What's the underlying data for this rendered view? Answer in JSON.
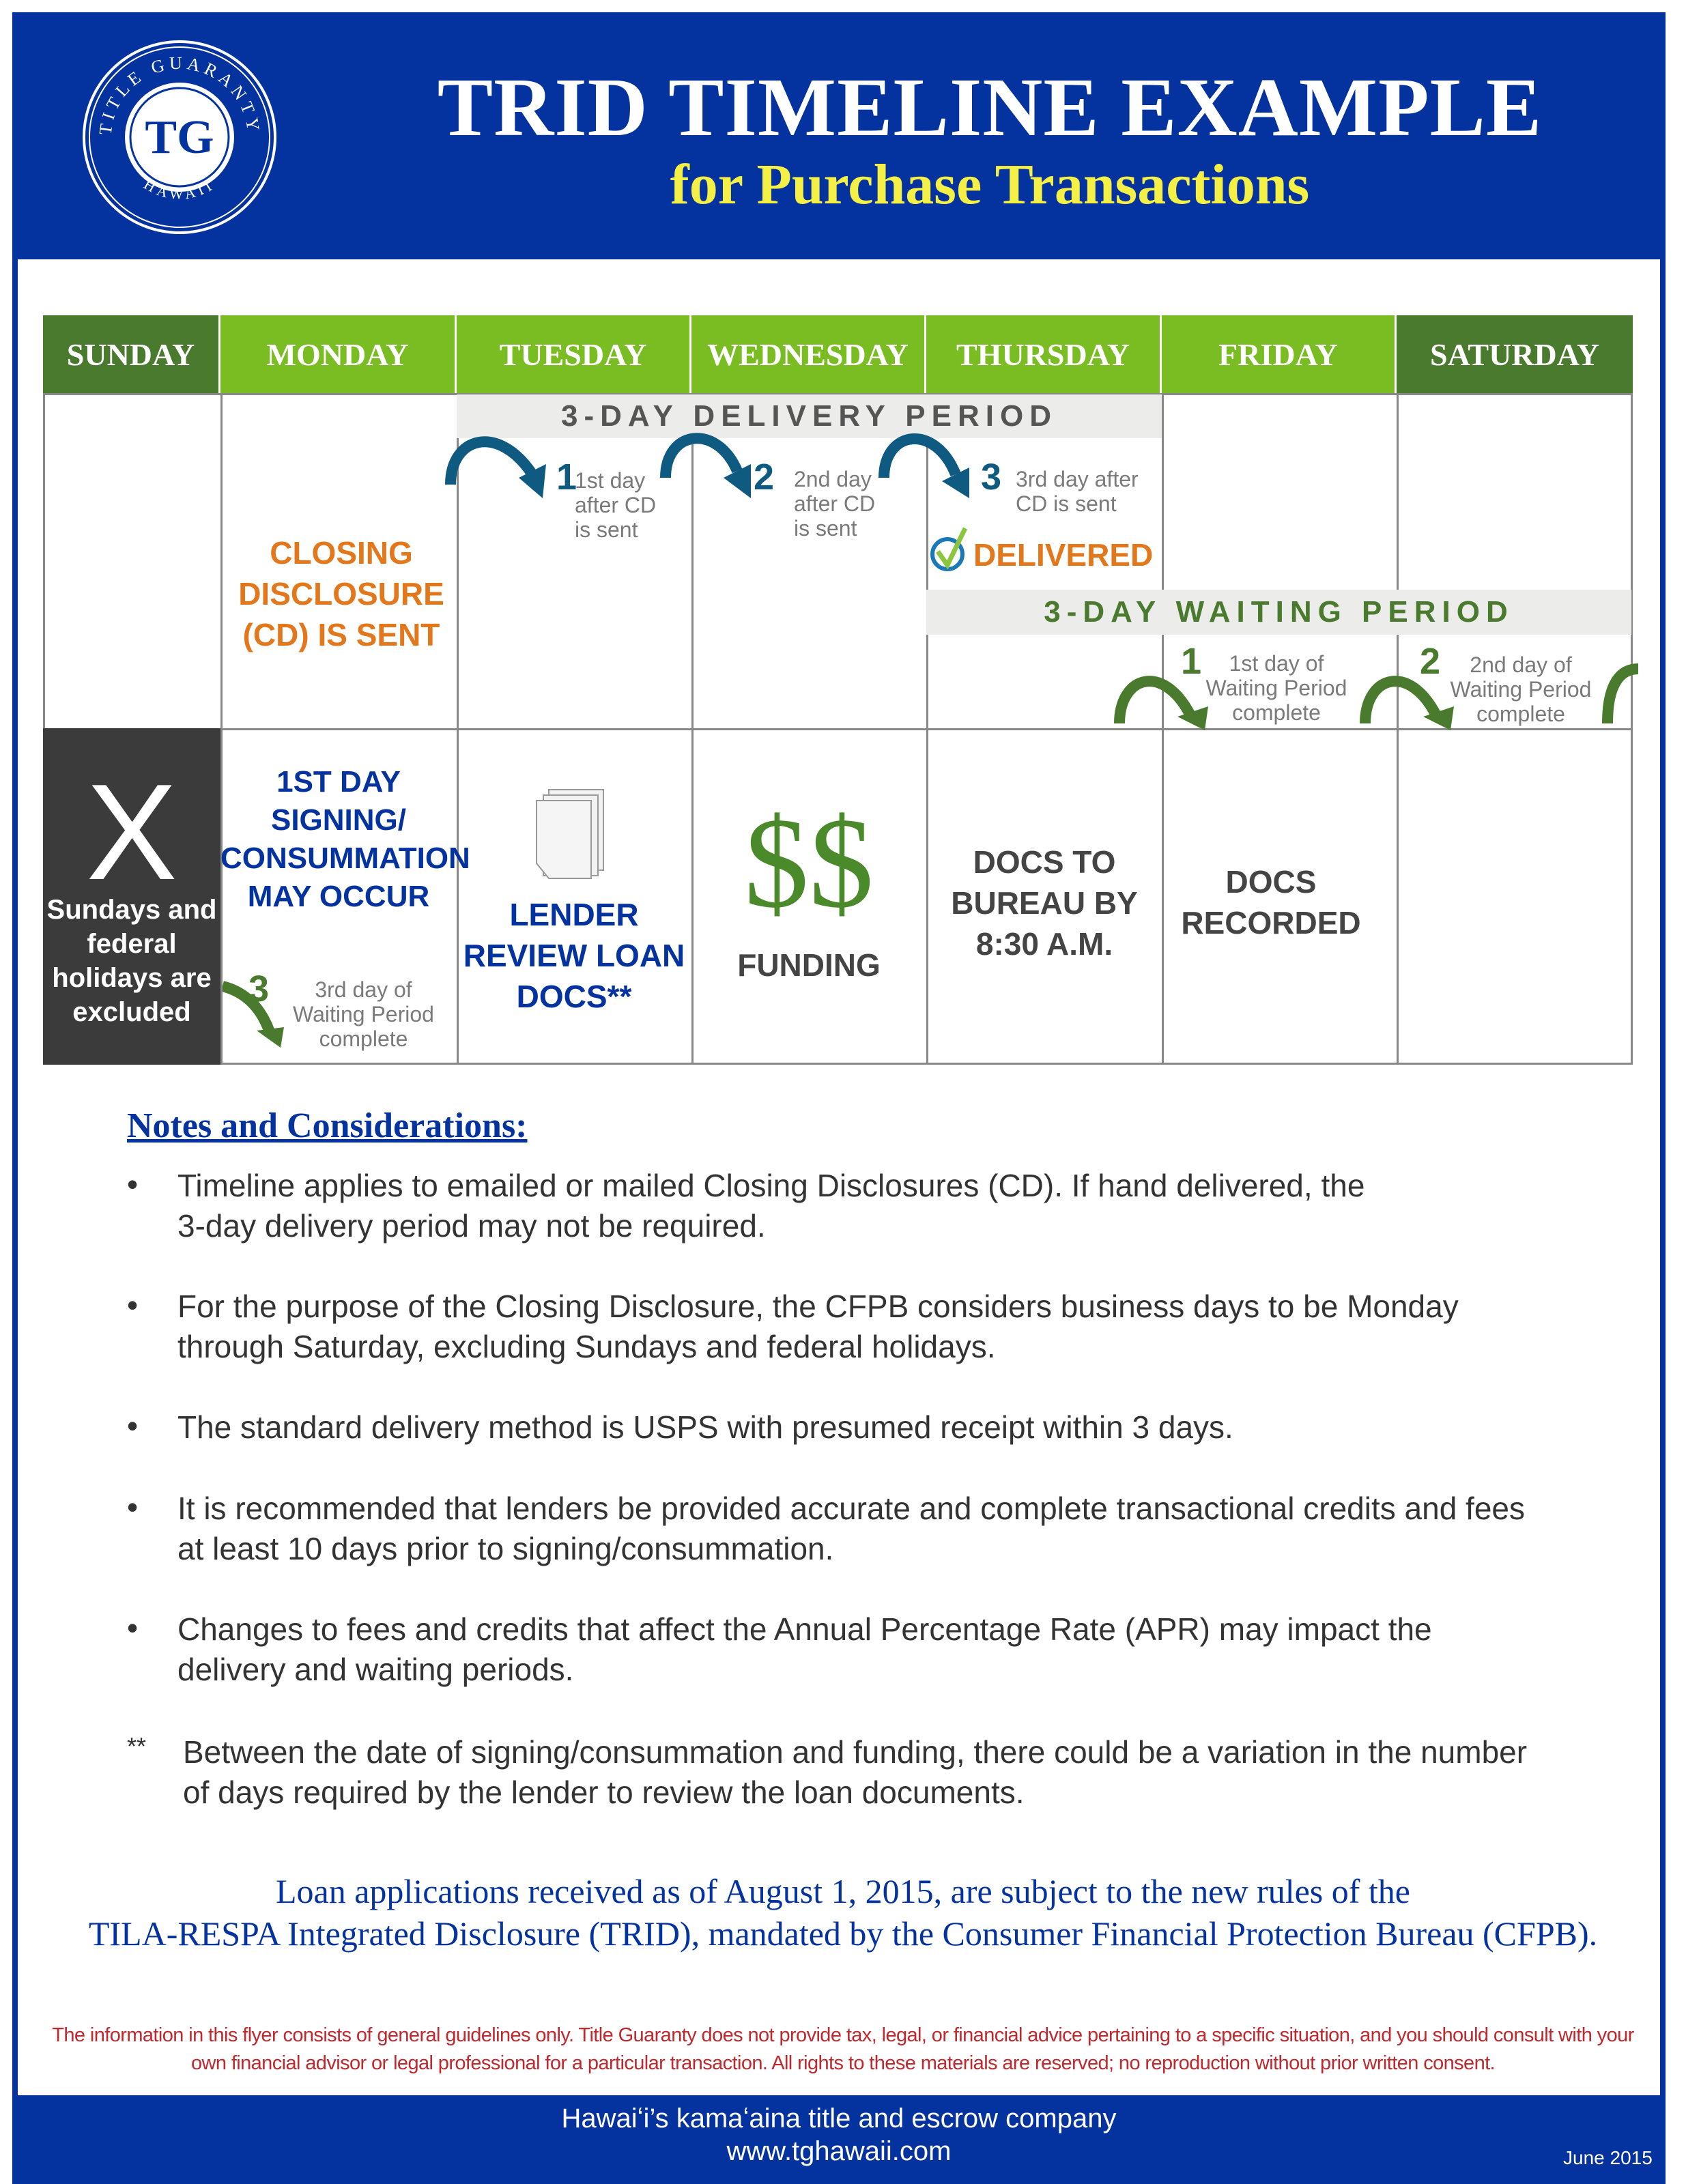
{
  "header": {
    "title": "TRID TIMELINE EXAMPLE",
    "subtitle": "for Purchase Transactions",
    "logo": {
      "initials": "TG",
      "ring_top": "TITLE GUARANTY",
      "ring_bottom": "HAWAII"
    }
  },
  "colors": {
    "brand_blue": "#0433a0",
    "yellow": "#f5f046",
    "green_light": "#7abd23",
    "green_dark": "#4a7a2d",
    "orange": "#e2781b",
    "teal_arrow": "#0e5a80"
  },
  "calendar": {
    "days": [
      "SUNDAY",
      "MONDAY",
      "TUESDAY",
      "WEDNESDAY",
      "THURSDAY",
      "FRIDAY",
      "SATURDAY"
    ],
    "delivery_period": {
      "label": "3-DAY DELIVERY PERIOD",
      "steps": [
        {
          "num": "1",
          "text": "1st day after CD is sent"
        },
        {
          "num": "2",
          "text": "2nd day after CD is sent"
        },
        {
          "num": "3",
          "text": "3rd day after CD is sent"
        }
      ],
      "delivered": "DELIVERED"
    },
    "closing_disclosure": "CLOSING DISCLOSURE (CD) IS SENT",
    "waiting_period": {
      "label": "3-DAY WAITING PERIOD",
      "steps": [
        {
          "num": "1",
          "text": "1st day of Waiting Period complete"
        },
        {
          "num": "2",
          "text": "2nd day of Waiting Period complete"
        },
        {
          "num": "3",
          "text": "3rd day of Waiting Period complete"
        }
      ]
    },
    "sunday": {
      "mark": "X",
      "text": "Sundays and federal holidays are excluded"
    },
    "monday": "1ST DAY SIGNING/ CONSUMMATION MAY OCCUR",
    "tuesday": "LENDER REVIEW LOAN DOCS**",
    "wednesday": {
      "symbol": "$$",
      "text": "FUNDING"
    },
    "thursday": "DOCS TO BUREAU BY 8:30 A.M.",
    "friday": "DOCS RECORDED"
  },
  "notes": {
    "heading": "Notes and Considerations:",
    "items": [
      "Timeline applies to emailed or mailed Closing Disclosures (CD).  If hand delivered, the 3-day delivery period may not be required.",
      "For the purpose of the Closing Disclosure, the CFPB considers business days to be Monday through Saturday, excluding Sundays and federal holidays.",
      "The standard delivery method is USPS with presumed receipt within 3 days.",
      "It is recommended that lenders be provided accurate and complete transactional credits and fees at least 10 days prior to signing/consummation.",
      "Changes to fees and credits that affect the Annual Percentage Rate (APR) may impact the delivery and waiting periods."
    ],
    "footnote_mark": "**",
    "footnote": "Between the date of signing/consummation and funding, there could be a variation in the number of days required by the lender to review the loan documents."
  },
  "statement": [
    "Loan applications received as of August 1, 2015, are subject to the new rules of the",
    "TILA-RESPA Integrated Disclosure (TRID), mandated by the Consumer Financial Protection Bureau (CFPB)."
  ],
  "disclaimer": [
    "The information in this flyer consists of general guidelines only.  Title Guaranty does not provide tax, legal, or financial advice pertaining to a specific situation, and you should consult with your",
    "own financial advisor or legal professional for a particular transaction.  All rights to these materials are reserved; no reproduction without prior written consent."
  ],
  "footer": {
    "tagline": "Hawaiʻi’s kamaʻaina title and escrow company",
    "url": "www.tghawaii.com",
    "date": "June 2015"
  }
}
